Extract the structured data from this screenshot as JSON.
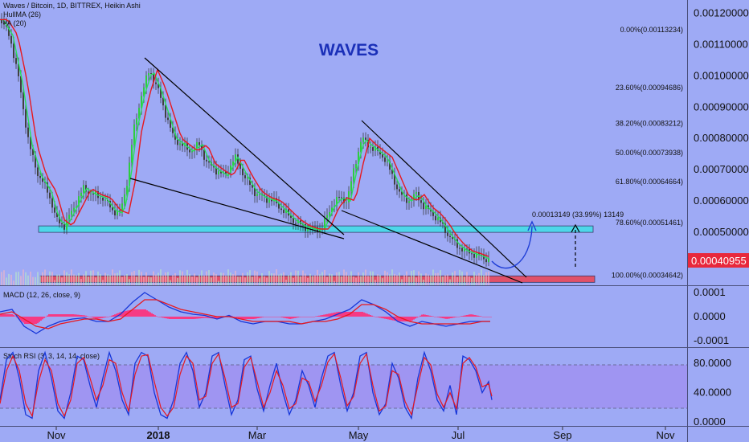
{
  "chart_data": {
    "type": "candlestick",
    "symbol_line": "Waves / Bitcoin, 1D, BITTREX, Heikin Ashi",
    "overlay_labels": [
      "HullMA (26)",
      "ᴹA (20)"
    ],
    "title": "WAVES",
    "price_axis": {
      "ticks": [
        "0.00120000",
        "0.00110000",
        "0.00100000",
        "0.00090000",
        "0.00080000",
        "0.00070000",
        "0.00060000",
        "0.00050000"
      ],
      "tick_values": [
        0.0012,
        0.0011,
        0.001,
        0.0009,
        0.0008,
        0.0007,
        0.0006,
        0.0005
      ],
      "ylim": [
        0.00033,
        0.00123
      ],
      "current_price": "0.00040955",
      "current_price_value": 0.00040955
    },
    "x_axis": {
      "labels": [
        "Nov",
        "2018",
        "Mar",
        "May",
        "Jul",
        "Sep",
        "Nov"
      ]
    },
    "fibonacci": [
      {
        "label": "0.00%(0.00113234)",
        "value": 0.00113234
      },
      {
        "label": "23.60%(0.00094686)",
        "value": 0.00094686
      },
      {
        "label": "38.20%(0.00083212)",
        "value": 0.00083212
      },
      {
        "label": "50.00%(0.00073938)",
        "value": 0.00073938
      },
      {
        "label": "61.80%(0.00064664)",
        "value": 0.00064664
      },
      {
        "label": "78.60%(0.00051461)",
        "value": 0.00051461
      },
      {
        "label": "100.00%(0.00034642)",
        "value": 0.00034642
      }
    ],
    "zones": [
      {
        "name": "resistance",
        "color": "#3fe0e8",
        "from": 0.0005,
        "to": 0.00052
      },
      {
        "name": "support",
        "color": "#e8485a",
        "from": 0.00034,
        "to": 0.00036
      }
    ],
    "target_annotation": "0.00013149 (33.99%) 13149",
    "macd": {
      "label": "MACD (12, 26, close, 9)",
      "ticks": [
        "0.0001",
        "0.0000",
        "-0.0001"
      ],
      "tick_values": [
        0.0001,
        0.0,
        -0.0001
      ]
    },
    "stoch_rsi": {
      "label": "Stoch RSI (3, 3, 14, 14, close)",
      "ticks": [
        "80.0000",
        "40.0000",
        "0.0000"
      ],
      "tick_values": [
        80,
        40,
        0
      ]
    },
    "price_path": [
      [
        0,
        0.00118
      ],
      [
        12,
        0.00113
      ],
      [
        24,
        0.00098
      ],
      [
        36,
        0.00078
      ],
      [
        48,
        0.00068
      ],
      [
        60,
        0.00063
      ],
      [
        70,
        0.00054
      ],
      [
        80,
        0.00052
      ],
      [
        92,
        0.00058
      ],
      [
        104,
        0.00064
      ],
      [
        116,
        0.00062
      ],
      [
        128,
        0.00061
      ],
      [
        140,
        0.00057
      ],
      [
        150,
        0.00056
      ],
      [
        158,
        0.00066
      ],
      [
        166,
        0.00082
      ],
      [
        176,
        0.00094
      ],
      [
        186,
        0.00102
      ],
      [
        196,
        0.00096
      ],
      [
        206,
        0.00088
      ],
      [
        216,
        0.0008
      ],
      [
        226,
        0.00078
      ],
      [
        236,
        0.00076
      ],
      [
        248,
        0.00078
      ],
      [
        258,
        0.00072
      ],
      [
        268,
        0.0007
      ],
      [
        280,
        0.00068
      ],
      [
        292,
        0.00074
      ],
      [
        304,
        0.00068
      ],
      [
        316,
        0.00063
      ],
      [
        328,
        0.00061
      ],
      [
        340,
        0.0006
      ],
      [
        352,
        0.00057
      ],
      [
        364,
        0.00054
      ],
      [
        376,
        0.00052
      ],
      [
        388,
        0.00051
      ],
      [
        400,
        0.00051
      ],
      [
        412,
        0.00058
      ],
      [
        422,
        0.00061
      ],
      [
        432,
        0.0006
      ],
      [
        442,
        0.00072
      ],
      [
        450,
        0.0008
      ],
      [
        458,
        0.00078
      ],
      [
        468,
        0.00076
      ],
      [
        478,
        0.00074
      ],
      [
        488,
        0.00068
      ],
      [
        498,
        0.00062
      ],
      [
        508,
        0.0006
      ],
      [
        518,
        0.00062
      ],
      [
        528,
        0.00058
      ],
      [
        538,
        0.00056
      ],
      [
        548,
        0.00053
      ],
      [
        558,
        0.00049
      ],
      [
        568,
        0.00046
      ],
      [
        578,
        0.00044
      ],
      [
        590,
        0.00043
      ],
      [
        600,
        0.00042
      ],
      [
        610,
        0.00041
      ]
    ],
    "macd_series": [
      [
        0,
        2e-05
      ],
      [
        15,
        3e-05
      ],
      [
        30,
        -4e-05
      ],
      [
        45,
        -7e-05
      ],
      [
        60,
        -4e-05
      ],
      [
        75,
        -2e-05
      ],
      [
        90,
        -1e-05
      ],
      [
        105,
        -5e-06
      ],
      [
        120,
        -2e-05
      ],
      [
        135,
        -2e-05
      ],
      [
        150,
        1e-05
      ],
      [
        165,
        6e-05
      ],
      [
        180,
        0.0001
      ],
      [
        195,
        7e-05
      ],
      [
        210,
        4e-05
      ],
      [
        225,
        2e-05
      ],
      [
        240,
        1e-05
      ],
      [
        255,
        5e-06
      ],
      [
        270,
        -1e-05
      ],
      [
        285,
        5e-06
      ],
      [
        300,
        -2e-05
      ],
      [
        315,
        -3e-05
      ],
      [
        330,
        -2e-05
      ],
      [
        345,
        -2e-05
      ],
      [
        360,
        -3e-05
      ],
      [
        375,
        -3e-05
      ],
      [
        390,
        -2e-05
      ],
      [
        405,
        -1e-05
      ],
      [
        420,
        1e-05
      ],
      [
        435,
        3e-05
      ],
      [
        450,
        7e-05
      ],
      [
        465,
        5e-05
      ],
      [
        480,
        2e-05
      ],
      [
        495,
        -2e-05
      ],
      [
        510,
        -4e-05
      ],
      [
        525,
        -2e-05
      ],
      [
        540,
        -3e-05
      ],
      [
        555,
        -4e-05
      ],
      [
        570,
        -3e-05
      ],
      [
        585,
        -2e-05
      ],
      [
        600,
        -2e-05
      ],
      [
        610,
        -2e-05
      ]
    ],
    "signal_series": [
      [
        0,
        1e-05
      ],
      [
        15,
        2e-05
      ],
      [
        30,
        -1e-05
      ],
      [
        45,
        -4e-05
      ],
      [
        60,
        -5e-05
      ],
      [
        75,
        -3e-05
      ],
      [
        90,
        -2e-05
      ],
      [
        105,
        -1e-05
      ],
      [
        120,
        -1e-05
      ],
      [
        135,
        -2e-05
      ],
      [
        150,
        -1e-05
      ],
      [
        165,
        3e-05
      ],
      [
        180,
        7e-05
      ],
      [
        195,
        7e-05
      ],
      [
        210,
        5e-05
      ],
      [
        225,
        3e-05
      ],
      [
        240,
        2e-05
      ],
      [
        255,
        1e-05
      ],
      [
        270,
        0.0
      ],
      [
        285,
        0.0
      ],
      [
        300,
        -1e-05
      ],
      [
        315,
        -2e-05
      ],
      [
        330,
        -2e-05
      ],
      [
        345,
        -2e-05
      ],
      [
        360,
        -2e-05
      ],
      [
        375,
        -3e-05
      ],
      [
        390,
        -2e-05
      ],
      [
        405,
        -2e-05
      ],
      [
        420,
        -1e-05
      ],
      [
        435,
        1e-05
      ],
      [
        450,
        5e-05
      ],
      [
        465,
        5e-05
      ],
      [
        480,
        3e-05
      ],
      [
        495,
        0.0
      ],
      [
        510,
        -2e-05
      ],
      [
        525,
        -3e-05
      ],
      [
        540,
        -3e-05
      ],
      [
        555,
        -3e-05
      ],
      [
        570,
        -3e-05
      ],
      [
        585,
        -3e-05
      ],
      [
        600,
        -2e-05
      ],
      [
        610,
        -2e-05
      ]
    ],
    "stoch_k": [
      [
        0,
        30
      ],
      [
        8,
        85
      ],
      [
        16,
        95
      ],
      [
        24,
        60
      ],
      [
        32,
        10
      ],
      [
        40,
        5
      ],
      [
        48,
        70
      ],
      [
        56,
        95
      ],
      [
        64,
        60
      ],
      [
        72,
        15
      ],
      [
        80,
        5
      ],
      [
        88,
        40
      ],
      [
        96,
        90
      ],
      [
        104,
        85
      ],
      [
        112,
        50
      ],
      [
        120,
        20
      ],
      [
        128,
        60
      ],
      [
        136,
        95
      ],
      [
        144,
        70
      ],
      [
        152,
        30
      ],
      [
        160,
        10
      ],
      [
        168,
        80
      ],
      [
        176,
        95
      ],
      [
        184,
        90
      ],
      [
        192,
        40
      ],
      [
        200,
        10
      ],
      [
        208,
        5
      ],
      [
        216,
        30
      ],
      [
        224,
        80
      ],
      [
        232,
        95
      ],
      [
        240,
        70
      ],
      [
        248,
        20
      ],
      [
        256,
        40
      ],
      [
        264,
        90
      ],
      [
        272,
        95
      ],
      [
        280,
        50
      ],
      [
        288,
        10
      ],
      [
        296,
        30
      ],
      [
        304,
        85
      ],
      [
        312,
        90
      ],
      [
        320,
        45
      ],
      [
        328,
        15
      ],
      [
        336,
        50
      ],
      [
        344,
        80
      ],
      [
        352,
        40
      ],
      [
        360,
        10
      ],
      [
        368,
        30
      ],
      [
        376,
        70
      ],
      [
        384,
        50
      ],
      [
        392,
        20
      ],
      [
        400,
        60
      ],
      [
        408,
        90
      ],
      [
        416,
        95
      ],
      [
        424,
        50
      ],
      [
        432,
        15
      ],
      [
        440,
        40
      ],
      [
        448,
        90
      ],
      [
        456,
        95
      ],
      [
        464,
        40
      ],
      [
        472,
        10
      ],
      [
        480,
        25
      ],
      [
        488,
        80
      ],
      [
        496,
        60
      ],
      [
        504,
        20
      ],
      [
        512,
        5
      ],
      [
        520,
        60
      ],
      [
        528,
        95
      ],
      [
        536,
        70
      ],
      [
        544,
        30
      ],
      [
        552,
        15
      ],
      [
        560,
        50
      ],
      [
        568,
        10
      ],
      [
        576,
        90
      ],
      [
        584,
        85
      ],
      [
        592,
        70
      ],
      [
        600,
        40
      ],
      [
        608,
        55
      ],
      [
        612,
        30
      ]
    ],
    "stoch_d": [
      [
        0,
        25
      ],
      [
        8,
        70
      ],
      [
        16,
        90
      ],
      [
        24,
        70
      ],
      [
        32,
        25
      ],
      [
        40,
        8
      ],
      [
        48,
        55
      ],
      [
        56,
        85
      ],
      [
        64,
        70
      ],
      [
        72,
        25
      ],
      [
        80,
        8
      ],
      [
        88,
        30
      ],
      [
        96,
        80
      ],
      [
        104,
        88
      ],
      [
        112,
        60
      ],
      [
        120,
        30
      ],
      [
        128,
        50
      ],
      [
        136,
        85
      ],
      [
        144,
        80
      ],
      [
        152,
        40
      ],
      [
        160,
        15
      ],
      [
        168,
        65
      ],
      [
        176,
        90
      ],
      [
        184,
        92
      ],
      [
        192,
        55
      ],
      [
        200,
        20
      ],
      [
        208,
        8
      ],
      [
        216,
        20
      ],
      [
        224,
        65
      ],
      [
        232,
        90
      ],
      [
        240,
        80
      ],
      [
        248,
        30
      ],
      [
        256,
        35
      ],
      [
        264,
        80
      ],
      [
        272,
        93
      ],
      [
        280,
        60
      ],
      [
        288,
        20
      ],
      [
        296,
        25
      ],
      [
        304,
        75
      ],
      [
        312,
        88
      ],
      [
        320,
        55
      ],
      [
        328,
        20
      ],
      [
        336,
        40
      ],
      [
        344,
        70
      ],
      [
        352,
        50
      ],
      [
        360,
        18
      ],
      [
        368,
        25
      ],
      [
        376,
        60
      ],
      [
        384,
        55
      ],
      [
        392,
        28
      ],
      [
        400,
        50
      ],
      [
        408,
        82
      ],
      [
        416,
        93
      ],
      [
        424,
        60
      ],
      [
        432,
        22
      ],
      [
        440,
        35
      ],
      [
        448,
        80
      ],
      [
        456,
        93
      ],
      [
        464,
        50
      ],
      [
        472,
        15
      ],
      [
        480,
        22
      ],
      [
        488,
        70
      ],
      [
        496,
        65
      ],
      [
        504,
        28
      ],
      [
        512,
        10
      ],
      [
        520,
        50
      ],
      [
        528,
        88
      ],
      [
        536,
        78
      ],
      [
        544,
        38
      ],
      [
        552,
        20
      ],
      [
        560,
        40
      ],
      [
        568,
        18
      ],
      [
        576,
        80
      ],
      [
        584,
        88
      ],
      [
        592,
        75
      ],
      [
        600,
        48
      ],
      [
        608,
        52
      ],
      [
        612,
        35
      ]
    ]
  }
}
